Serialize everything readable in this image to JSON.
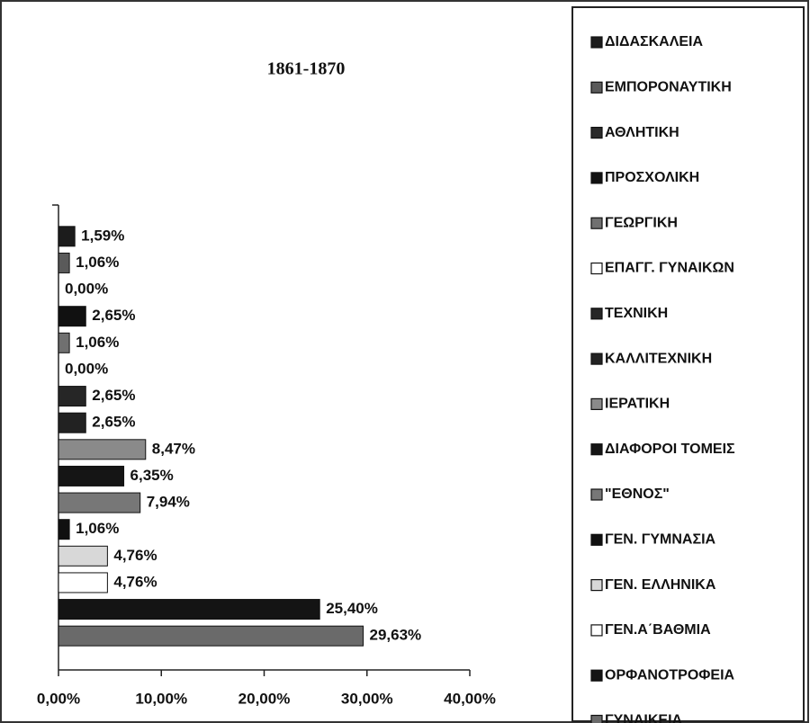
{
  "chart_data": {
    "type": "bar",
    "orientation": "horizontal",
    "title": "1861-1870",
    "categories": [
      "ΔΙΔΑΣΚΑΛΕΙΑ",
      "ΕΜΠΟΡΟΝΑΥΤΙΚΗ",
      "ΑΘΛΗΤΙΚΗ",
      "ΠΡΟΣΧΟΛΙΚΗ",
      "ΓΕΩΡΓΙΚΗ",
      "ΕΠΑΓΓ. ΓΥΝΑΙΚΩΝ",
      "ΤΕΧΝΙΚΗ",
      "ΚΑΛΛΙΤΕΧΝΙΚΗ",
      "ΙΕΡΑΤΙΚΗ",
      "ΔΙΑΦΟΡΟΙ ΤΟΜΕΙΣ",
      "\"ΕΘΝΟΣ\"",
      "ΓΕΝ. ΓΥΜΝΑΣΙΑ",
      "ΓΕΝ. ΕΛΛΗΝΙΚΑ",
      "ΓΕΝ.Α΄ΒΑΘΜΙΑ",
      "ΟΡΦΑΝΟΤΡΟΦΕΙΑ",
      "ΓΥΝΑΙΚΕΙΑ"
    ],
    "values": [
      1.59,
      1.06,
      0,
      2.65,
      1.06,
      0,
      2.65,
      2.65,
      8.47,
      6.35,
      7.94,
      1.06,
      4.76,
      4.76,
      25.4,
      29.63
    ],
    "value_labels": [
      "1,59%",
      "1,06%",
      "0,00%",
      "2,65%",
      "1,06%",
      "0,00%",
      "2,65%",
      "2,65%",
      "8,47%",
      "6,35%",
      "7,94%",
      "1,06%",
      "4,76%",
      "4,76%",
      "25,40%",
      "29,63%"
    ],
    "colors": [
      "#1c1c1c",
      "#5a5a5a",
      "#2a2a2a",
      "#111111",
      "#707070",
      "#ffffff",
      "#262626",
      "#222222",
      "#8a8a8a",
      "#151515",
      "#777777",
      "#101010",
      "#d8d8d8",
      "#ffffff",
      "#141414",
      "#6a6a6a"
    ],
    "xlim": [
      0,
      40
    ],
    "xticks": [
      {
        "value": 0,
        "label": "0,00%"
      },
      {
        "value": 10,
        "label": "10,00%"
      },
      {
        "value": 20,
        "label": "20,00%"
      },
      {
        "value": 30,
        "label": "30,00%"
      },
      {
        "value": 40,
        "label": "40,00%"
      }
    ],
    "legend": "right"
  }
}
